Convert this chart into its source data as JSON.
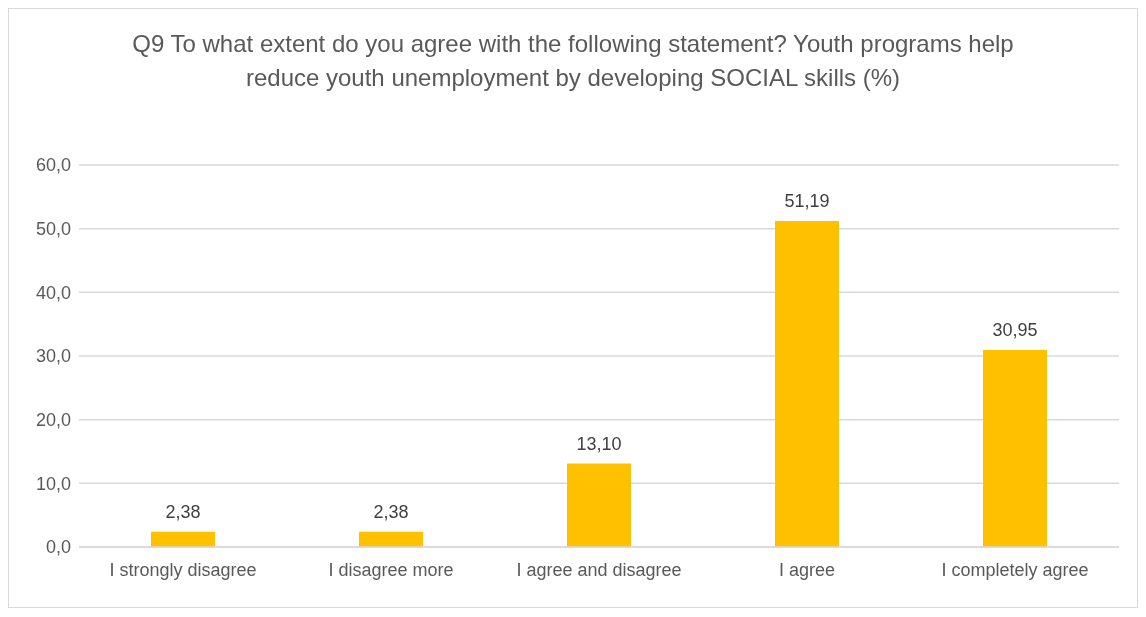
{
  "chart_data": {
    "type": "bar",
    "title": "Q9 To what extent do you agree with the following statement? Youth programs help reduce youth unemployment by developing SOCIAL skills (%)",
    "categories": [
      "I strongly disagree",
      "I disagree more",
      "I agree and disagree",
      "I agree",
      "I completely agree"
    ],
    "values": [
      2.38,
      2.38,
      13.1,
      51.19,
      30.95
    ],
    "value_labels": [
      "2,38",
      "2,38",
      "13,10",
      "51,19",
      "30,95"
    ],
    "color": "#ffc000",
    "ylim": [
      0,
      60
    ],
    "yticks": [
      {
        "value": 0,
        "label": "0,0"
      },
      {
        "value": 10,
        "label": "10,0"
      },
      {
        "value": 20,
        "label": "20,0"
      },
      {
        "value": 30,
        "label": "30,0"
      },
      {
        "value": 40,
        "label": "40,0"
      },
      {
        "value": 50,
        "label": "50,0"
      },
      {
        "value": 60,
        "label": "60,0"
      }
    ],
    "grid": "y"
  }
}
